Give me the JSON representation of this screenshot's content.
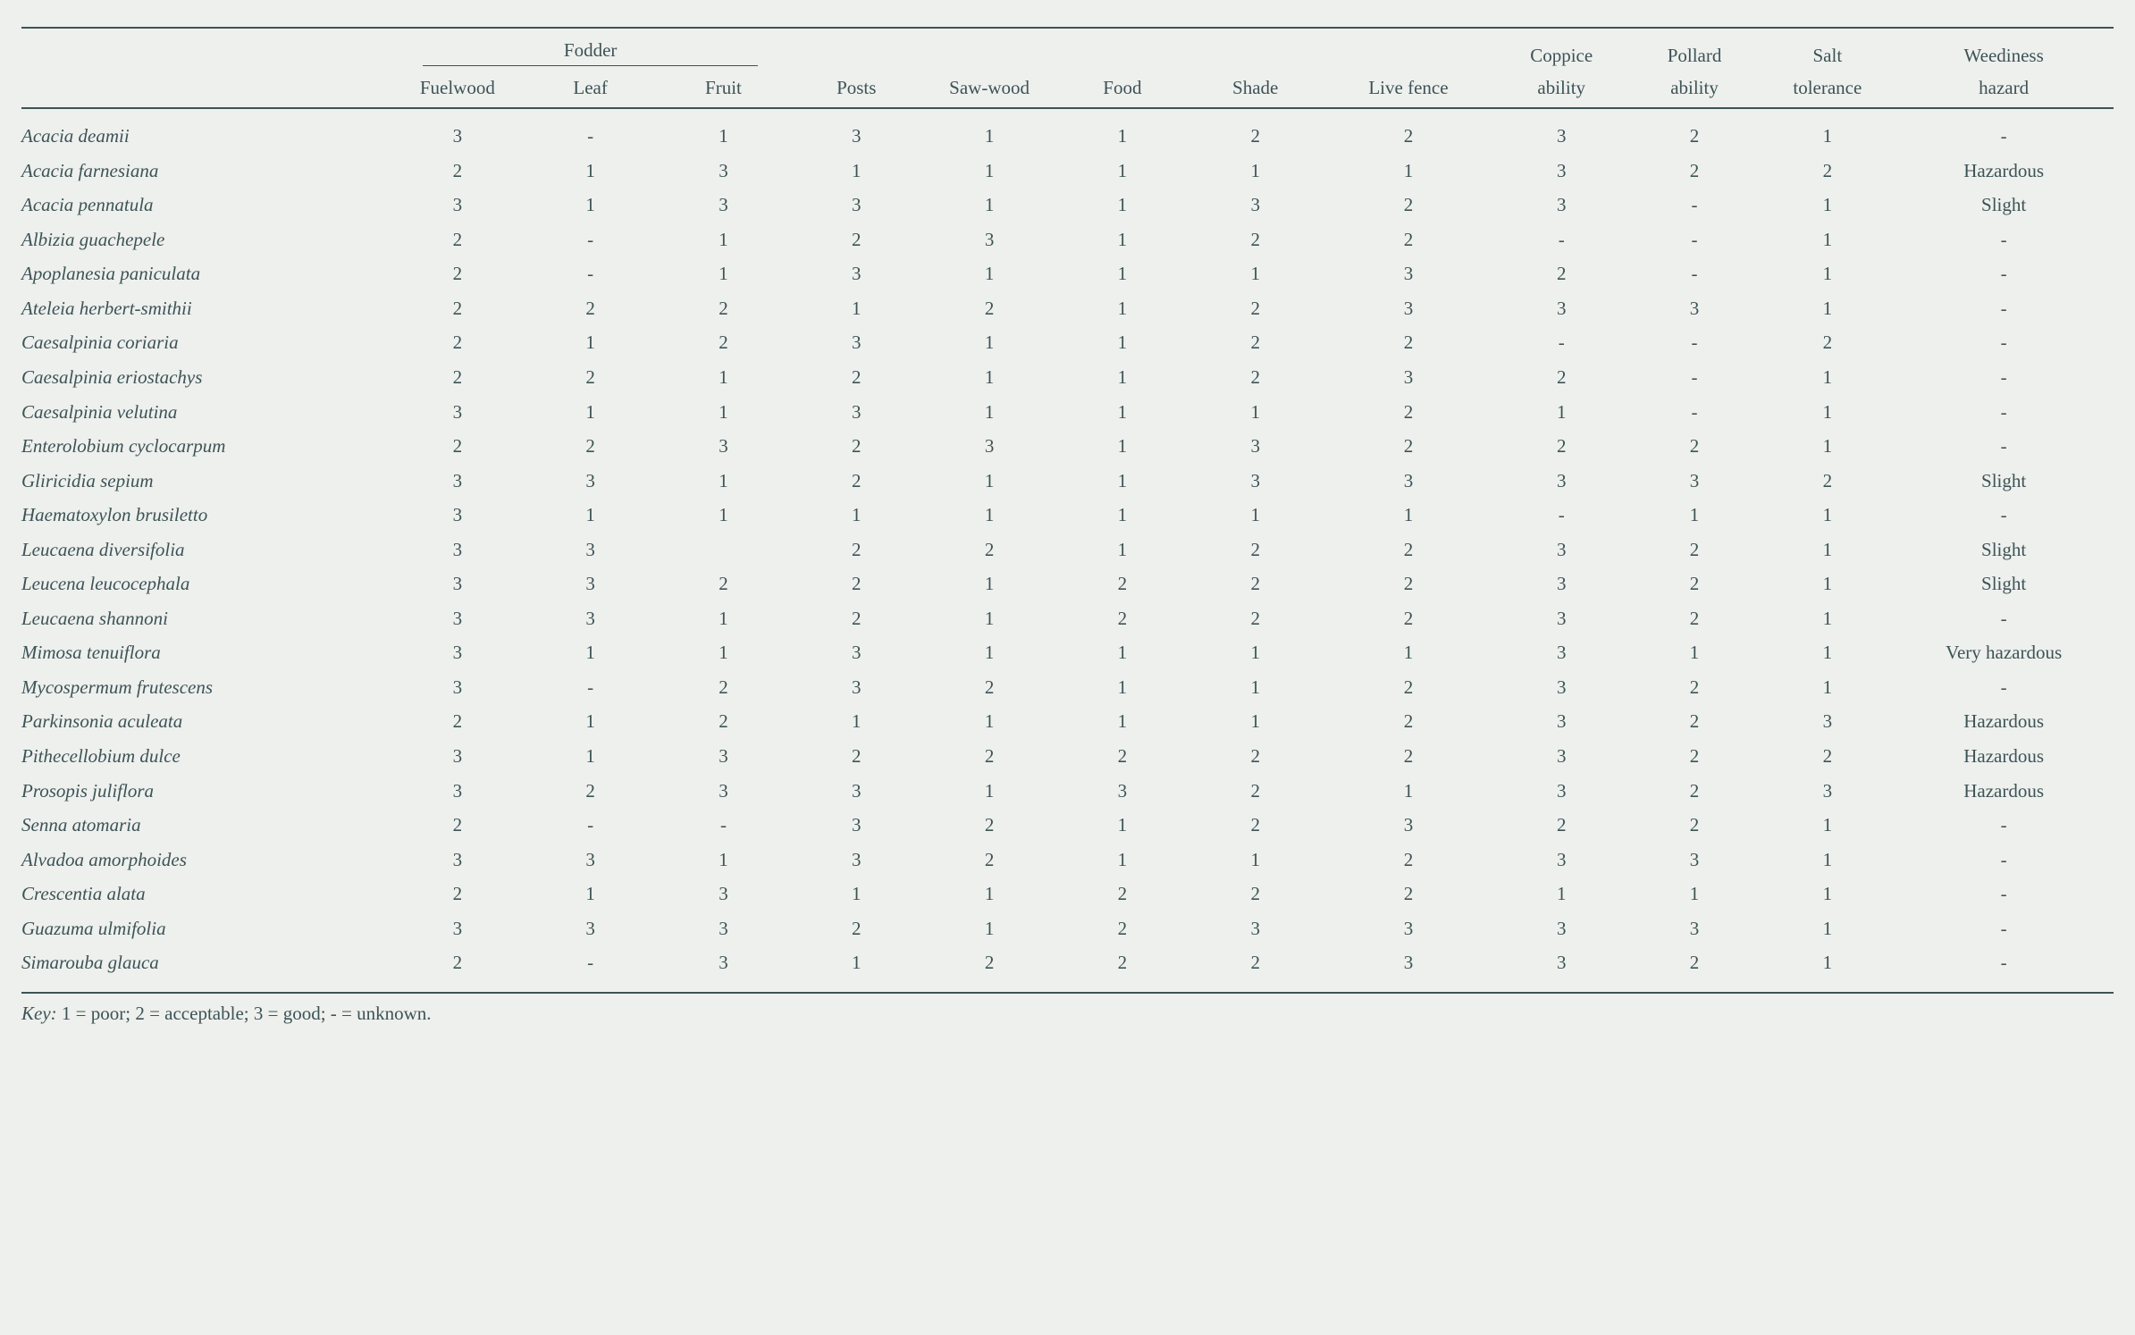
{
  "colors": {
    "text": "#3d5355",
    "background": "#eef0ee",
    "rule": "#3d5355"
  },
  "typography": {
    "font_family": "Times New Roman",
    "base_pt": 16,
    "species_italic": true,
    "key_label_italic": true
  },
  "layout": {
    "columns_count": 13,
    "species_col_width_pct": 17.5,
    "numeric_col_width_pct": 6.3,
    "livefence_col_width_pct": 8.2,
    "weediness_col_width_pct": 10.4,
    "row_line_height": 1.55
  },
  "header": {
    "fodder_group_label": "Fodder",
    "columns": {
      "fuelwood": "Fuelwood",
      "leaf": "Leaf",
      "fruit": "Fruit",
      "posts": "Posts",
      "sawwood": "Saw-wood",
      "food": "Food",
      "shade": "Shade",
      "livefence": "Live fence",
      "coppice_l1": "Coppice",
      "coppice_l2": "ability",
      "pollard_l1": "Pollard",
      "pollard_l2": "ability",
      "salt_l1": "Salt",
      "salt_l2": "tolerance",
      "weed_l1": "Weediness",
      "weed_l2": "hazard"
    }
  },
  "rows": [
    {
      "sp": "Acacia deamii",
      "v": [
        "3",
        "-",
        "1",
        "3",
        "1",
        "1",
        "2",
        "2",
        "3",
        "2",
        "1",
        "-"
      ]
    },
    {
      "sp": "Acacia farnesiana",
      "v": [
        "2",
        "1",
        "3",
        "1",
        "1",
        "1",
        "1",
        "1",
        "3",
        "2",
        "2",
        "Hazardous"
      ]
    },
    {
      "sp": "Acacia pennatula",
      "v": [
        "3",
        "1",
        "3",
        "3",
        "1",
        "1",
        "3",
        "2",
        "3",
        "-",
        "1",
        "Slight"
      ]
    },
    {
      "sp": "Albizia guachepele",
      "v": [
        "2",
        "-",
        "1",
        "2",
        "3",
        "1",
        "2",
        "2",
        "-",
        "-",
        "1",
        "-"
      ]
    },
    {
      "sp": "Apoplanesia paniculata",
      "v": [
        "2",
        "-",
        "1",
        "3",
        "1",
        "1",
        "1",
        "3",
        "2",
        "-",
        "1",
        "-"
      ]
    },
    {
      "sp": "Ateleia herbert-smithii",
      "v": [
        "2",
        "2",
        "2",
        "1",
        "2",
        "1",
        "2",
        "3",
        "3",
        "3",
        "1",
        "-"
      ]
    },
    {
      "sp": "Caesalpinia coriaria",
      "v": [
        "2",
        "1",
        "2",
        "3",
        "1",
        "1",
        "2",
        "2",
        "-",
        "-",
        "2",
        "-"
      ]
    },
    {
      "sp": "Caesalpinia eriostachys",
      "v": [
        "2",
        "2",
        "1",
        "2",
        "1",
        "1",
        "2",
        "3",
        "2",
        "-",
        "1",
        "-"
      ]
    },
    {
      "sp": "Caesalpinia velutina",
      "v": [
        "3",
        "1",
        "1",
        "3",
        "1",
        "1",
        "1",
        "2",
        "1",
        "-",
        "1",
        "-"
      ]
    },
    {
      "sp": "Enterolobium cyclocarpum",
      "v": [
        "2",
        "2",
        "3",
        "2",
        "3",
        "1",
        "3",
        "2",
        "2",
        "2",
        "1",
        "-"
      ]
    },
    {
      "sp": "Gliricidia sepium",
      "v": [
        "3",
        "3",
        "1",
        "2",
        "1",
        "1",
        "3",
        "3",
        "3",
        "3",
        "2",
        "Slight"
      ]
    },
    {
      "sp": "Haematoxylon brusiletto",
      "v": [
        "3",
        "1",
        "1",
        "1",
        "1",
        "1",
        "1",
        "1",
        "-",
        "1",
        "1",
        "-"
      ]
    },
    {
      "sp": "Leucaena diversifolia",
      "v": [
        "3",
        "3",
        "",
        "2",
        "2",
        "1",
        "2",
        "2",
        "3",
        "2",
        "1",
        "Slight"
      ]
    },
    {
      "sp": "Leucena leucocephala",
      "v": [
        "3",
        "3",
        "2",
        "2",
        "1",
        "2",
        "2",
        "2",
        "3",
        "2",
        "1",
        "Slight"
      ]
    },
    {
      "sp": "Leucaena shannoni",
      "v": [
        "3",
        "3",
        "1",
        "2",
        "1",
        "2",
        "2",
        "2",
        "3",
        "2",
        "1",
        "-"
      ]
    },
    {
      "sp": "Mimosa tenuiflora",
      "v": [
        "3",
        "1",
        "1",
        "3",
        "1",
        "1",
        "1",
        "1",
        "3",
        "1",
        "1",
        "Very hazardous"
      ]
    },
    {
      "sp": "Mycospermum frutescens",
      "v": [
        "3",
        "-",
        "2",
        "3",
        "2",
        "1",
        "1",
        "2",
        "3",
        "2",
        "1",
        "-"
      ]
    },
    {
      "sp": "Parkinsonia aculeata",
      "v": [
        "2",
        "1",
        "2",
        "1",
        "1",
        "1",
        "1",
        "2",
        "3",
        "2",
        "3",
        "Hazardous"
      ]
    },
    {
      "sp": "Pithecellobium dulce",
      "v": [
        "3",
        "1",
        "3",
        "2",
        "2",
        "2",
        "2",
        "2",
        "3",
        "2",
        "2",
        "Hazardous"
      ]
    },
    {
      "sp": "Prosopis juliflora",
      "v": [
        "3",
        "2",
        "3",
        "3",
        "1",
        "3",
        "2",
        "1",
        "3",
        "2",
        "3",
        "Hazardous"
      ]
    },
    {
      "sp": "Senna atomaria",
      "v": [
        "2",
        "-",
        "-",
        "3",
        "2",
        "1",
        "2",
        "3",
        "2",
        "2",
        "1",
        "-"
      ]
    },
    {
      "sp": "Alvadoa amorphoides",
      "v": [
        "3",
        "3",
        "1",
        "3",
        "2",
        "1",
        "1",
        "2",
        "3",
        "3",
        "1",
        "-"
      ]
    },
    {
      "sp": "Crescentia alata",
      "v": [
        "2",
        "1",
        "3",
        "1",
        "1",
        "2",
        "2",
        "2",
        "1",
        "1",
        "1",
        "-"
      ]
    },
    {
      "sp": "Guazuma ulmifolia",
      "v": [
        "3",
        "3",
        "3",
        "2",
        "1",
        "2",
        "3",
        "3",
        "3",
        "3",
        "1",
        "-"
      ]
    },
    {
      "sp": "Simarouba glauca",
      "v": [
        "2",
        "-",
        "3",
        "1",
        "2",
        "2",
        "2",
        "3",
        "3",
        "2",
        "1",
        "-"
      ]
    }
  ],
  "key": {
    "label": "Key:",
    "text": " 1 = poor; 2 = acceptable; 3 = good; - = unknown."
  }
}
